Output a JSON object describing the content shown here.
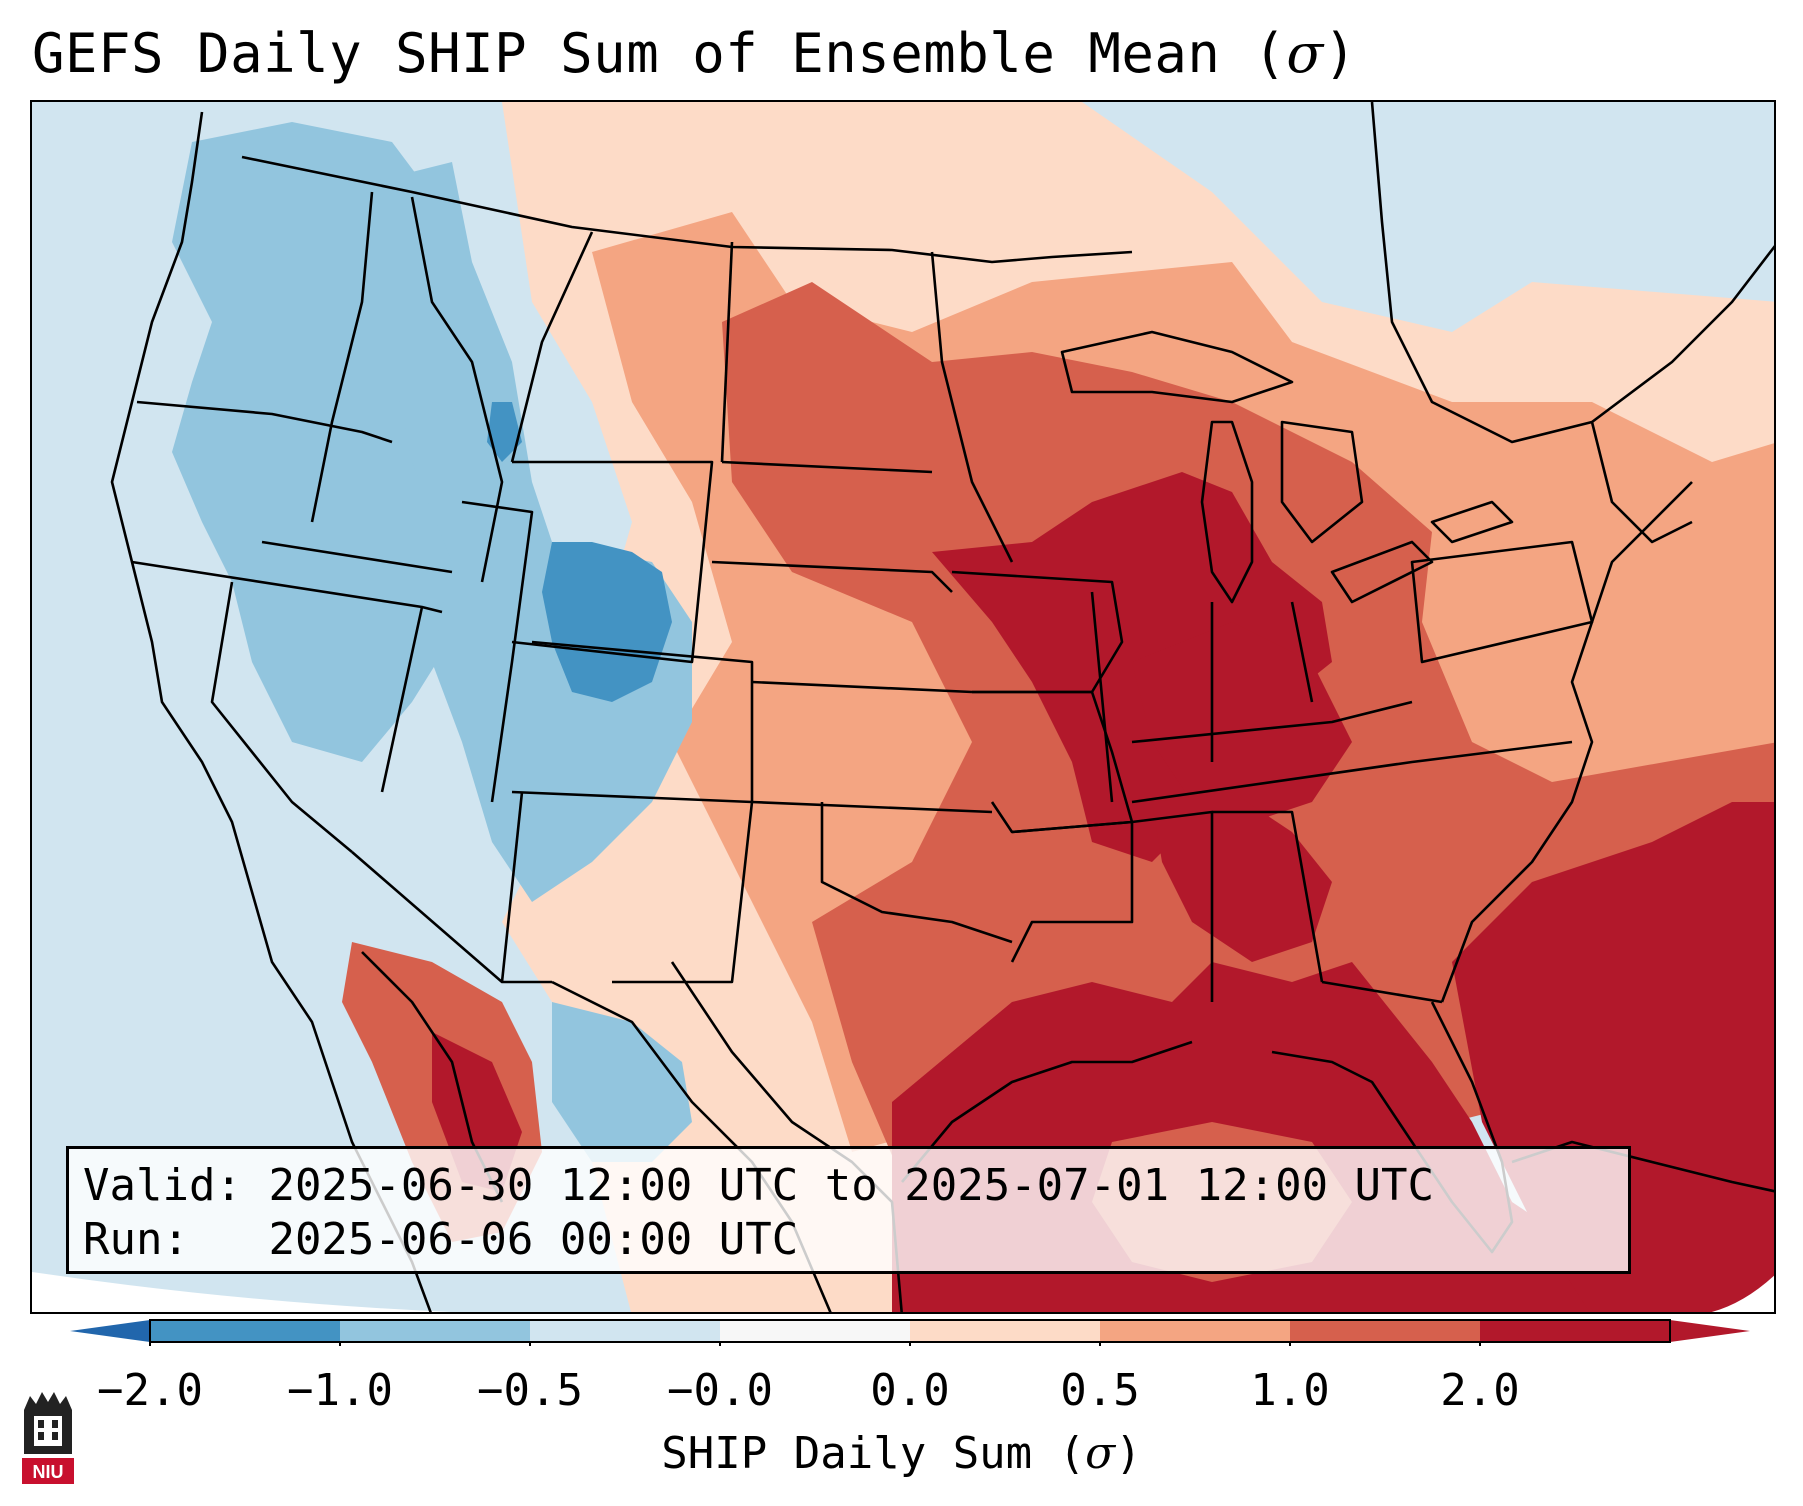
{
  "title": {
    "prefix": "GEFS Daily SHIP Sum of Ensemble Mean (",
    "symbol": "σ",
    "suffix": ")"
  },
  "info": {
    "valid_label": "Valid:",
    "valid_value": "2025-06-30 12:00 UTC to 2025-07-01 12:00 UTC",
    "run_label": "Run:  ",
    "run_value": "2025-06-06 00:00 UTC"
  },
  "colorbar": {
    "label_prefix": "SHIP Daily Sum (",
    "label_symbol": "σ",
    "label_suffix": ")",
    "ticks": [
      "−2.0",
      "−1.0",
      "−0.5",
      "−0.0",
      "0.0",
      "0.5",
      "1.0",
      "2.0"
    ],
    "colors": [
      "#4393c3",
      "#92c5de",
      "#d1e5f0",
      "#f7f7f7",
      "#fddbc7",
      "#f4a582",
      "#d6604d",
      "#b2182b"
    ],
    "extend_low_color": "#2166ac",
    "extend_high_color": "#b2182b"
  },
  "logo": {
    "text": "NIU"
  },
  "map_regions": [
    {
      "name": "region-pacific-northwest",
      "level": "below-1.0"
    },
    {
      "name": "region-colorado",
      "level": "below-2.0"
    },
    {
      "name": "region-upper-midwest",
      "level": "above-1.0"
    },
    {
      "name": "region-gulf-of-mexico",
      "level": "above-2.0"
    },
    {
      "name": "region-southeast-atlantic",
      "level": "above-2.0"
    }
  ]
}
